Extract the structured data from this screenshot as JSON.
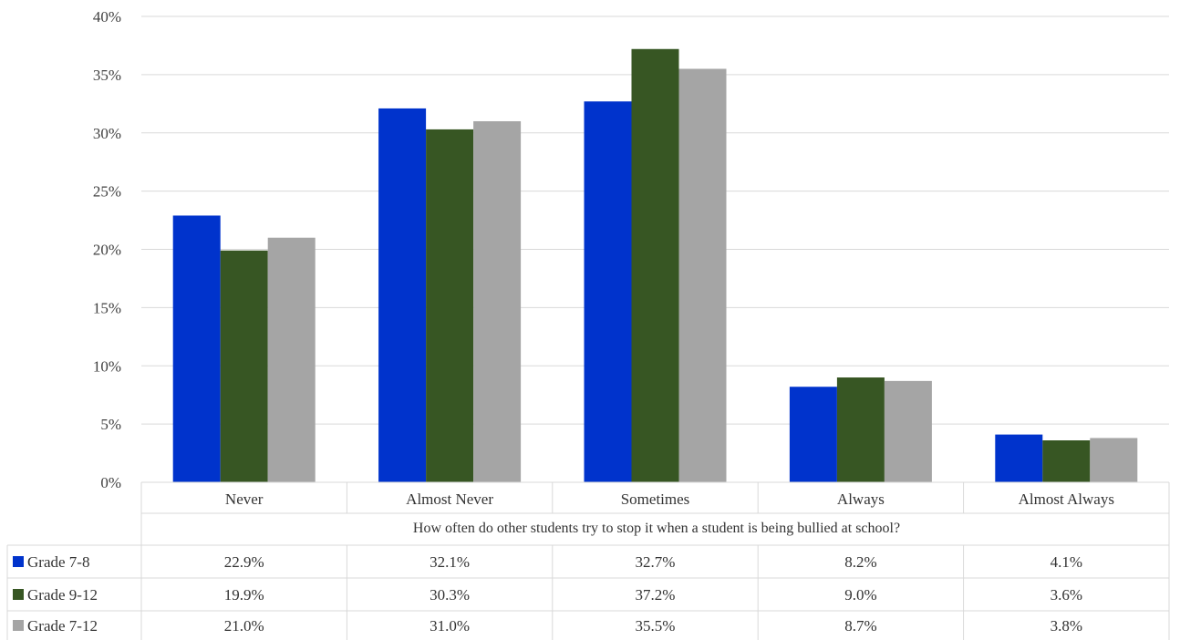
{
  "chart_data": {
    "type": "bar",
    "title": "",
    "xlabel": "How often do other students try to stop it when a student is being bullied at school?",
    "ylabel": "",
    "categories": [
      "Never",
      "Almost Never",
      "Sometimes",
      "Always",
      "Almost Always"
    ],
    "ylim": [
      0,
      40
    ],
    "y_ticks": [
      "0%",
      "5%",
      "10%",
      "15%",
      "20%",
      "25%",
      "30%",
      "35%",
      "40%"
    ],
    "grid": true,
    "legend_placement": "data-table-left",
    "series": [
      {
        "name": "Grade  7-8",
        "color": "#0033cc",
        "values": [
          22.9,
          32.1,
          32.7,
          8.2,
          4.1
        ],
        "labels": [
          "22.9%",
          "32.1%",
          "32.7%",
          "8.2%",
          "4.1%"
        ]
      },
      {
        "name": "Grade  9-12",
        "color": "#375623",
        "values": [
          19.9,
          30.3,
          37.2,
          9.0,
          3.6
        ],
        "labels": [
          "19.9%",
          "30.3%",
          "37.2%",
          "9.0%",
          "3.6%"
        ]
      },
      {
        "name": "Grade  7-12",
        "color": "#a5a5a5",
        "values": [
          21.0,
          31.0,
          35.5,
          8.7,
          3.8
        ],
        "labels": [
          "21.0%",
          "31.0%",
          "35.5%",
          "8.7%",
          "3.8%"
        ]
      }
    ]
  }
}
